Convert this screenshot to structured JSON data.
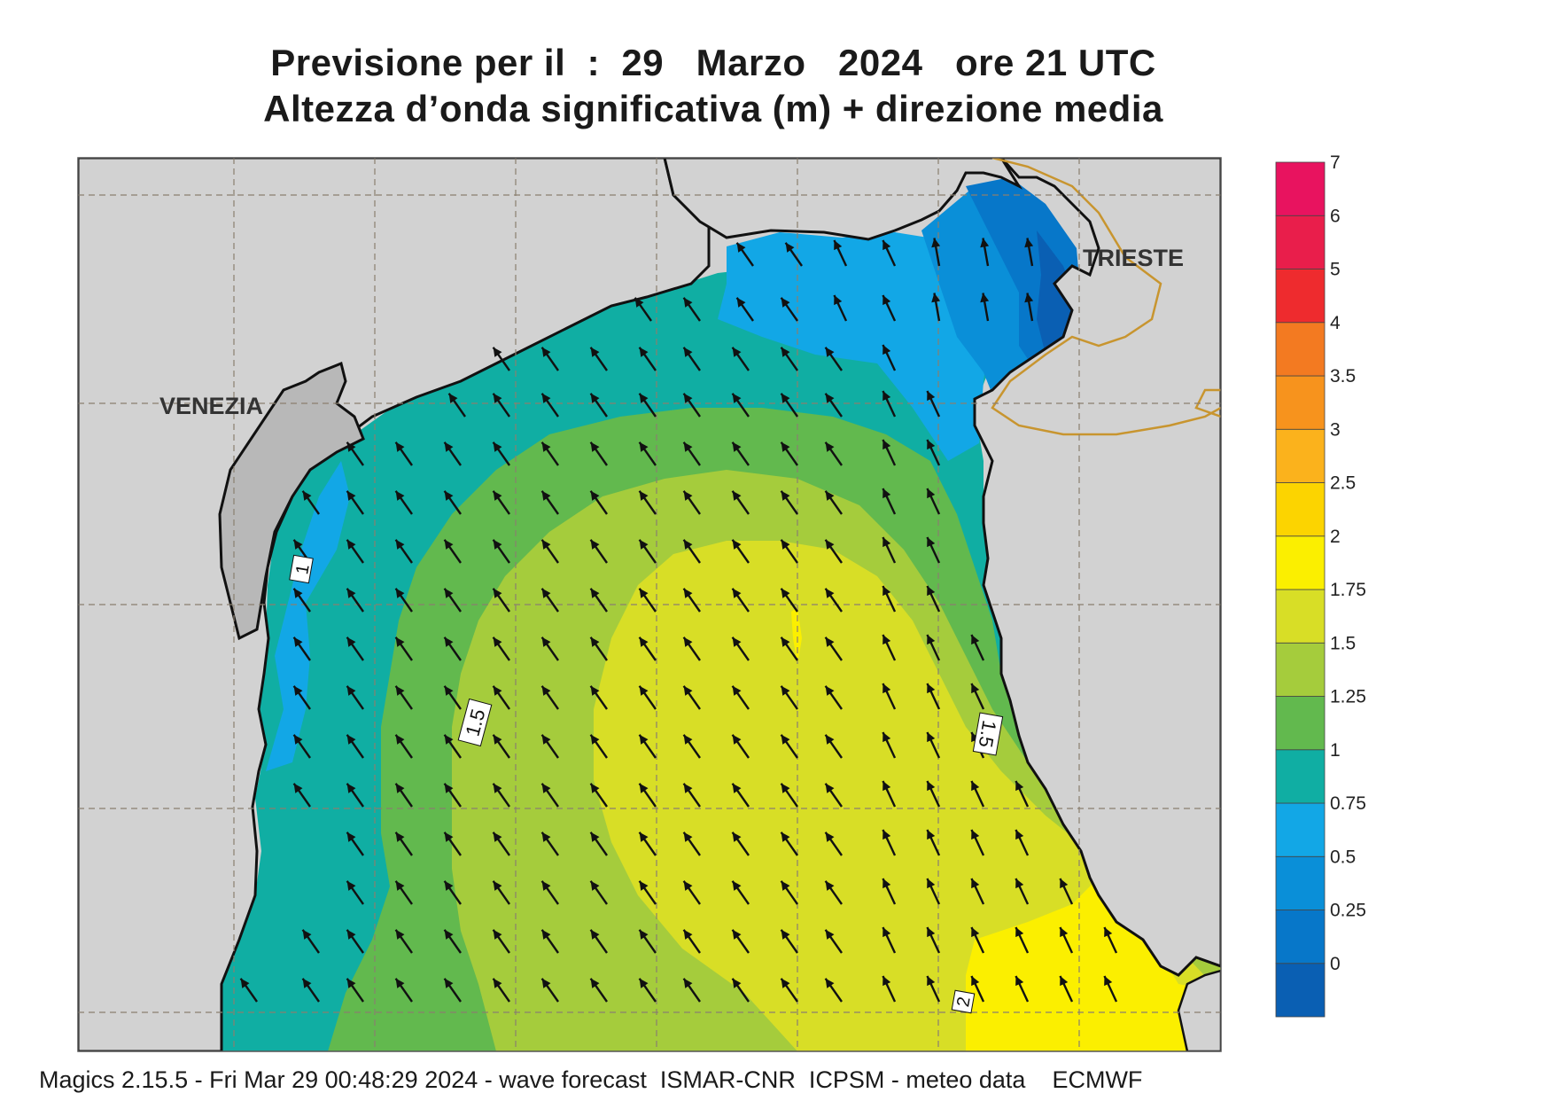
{
  "title": {
    "line1": "Previsione per il  :  29   Marzo   2024   ore 21 UTC",
    "line2": "Altezza d’onda significativa (m) + direzione media"
  },
  "map": {
    "place_labels": [
      "VENEZIA",
      "TRIESTE"
    ],
    "contour_labels": [
      "1",
      "1.5",
      "1.5",
      "2"
    ],
    "arrow_direction": "north-west"
  },
  "legend": {
    "ticks": [
      "7",
      "6",
      "5",
      "4",
      "3.5",
      "3",
      "2.5",
      "2",
      "1.75",
      "1.5",
      "1.25",
      "1",
      "0.75",
      "0.5",
      "0.25",
      "0"
    ],
    "colors": [
      "#0a5fb3",
      "#0777c9",
      "#0a8fd8",
      "#12a7e6",
      "#10aea3",
      "#62b94e",
      "#a5cc3c",
      "#d8de26",
      "#fbef00",
      "#fcd400",
      "#fbb21c",
      "#f7931d",
      "#f37a21",
      "#ee2b2e",
      "#e91e4b",
      "#e8135f"
    ]
  },
  "footer": "Magics 2.15.5 - Fri Mar 29 00:48:29 2024 - wave forecast  ISMAR-CNR  ICPSM - meteo data    ECMWF"
}
